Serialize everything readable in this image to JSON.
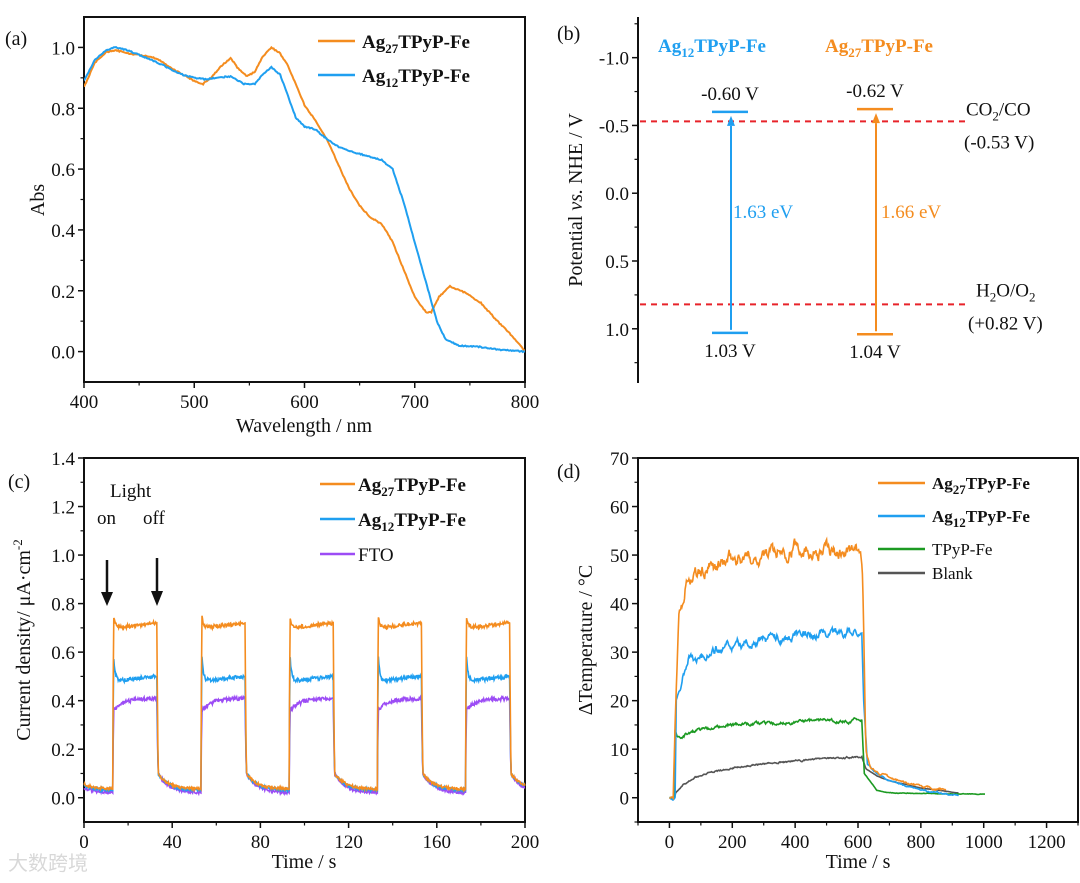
{
  "colors": {
    "orange": "#f48c1f",
    "blue": "#1f9ff0",
    "purple": "#9c4cf5",
    "green": "#1c9a22",
    "gray": "#555555",
    "red": "#e8232a",
    "axis": "#111111"
  },
  "watermark": "大数跨境",
  "chart_data": [
    {
      "panel": "(a)",
      "type": "line",
      "xlabel": "Wavelength / nm",
      "ylabel": "Abs",
      "xlim": [
        400,
        800
      ],
      "ylim": [
        -0.1,
        1.1
      ],
      "xticks": [
        400,
        500,
        600,
        700,
        800
      ],
      "yticks": [
        "0.0",
        "0.2",
        "0.4",
        "0.6",
        "0.8",
        "1.0"
      ],
      "legend_position": "top-right",
      "series": [
        {
          "name": {
            "base": "Ag",
            "sub": "27",
            "rest": "TPyP-Fe"
          },
          "color": "orange",
          "x": [
            400,
            410,
            420,
            430,
            440,
            450,
            460,
            470,
            480,
            490,
            500,
            508,
            515,
            525,
            533,
            540,
            548,
            555,
            562,
            570,
            578,
            585,
            592,
            600,
            610,
            620,
            630,
            640,
            650,
            660,
            670,
            680,
            690,
            700,
            710,
            715,
            722,
            732,
            745,
            760,
            775,
            790,
            800
          ],
          "y": [
            0.87,
            0.95,
            0.985,
            0.99,
            0.98,
            0.975,
            0.97,
            0.955,
            0.93,
            0.91,
            0.89,
            0.88,
            0.9,
            0.94,
            0.965,
            0.93,
            0.905,
            0.92,
            0.97,
            1.0,
            0.98,
            0.94,
            0.88,
            0.81,
            0.76,
            0.7,
            0.62,
            0.54,
            0.48,
            0.44,
            0.42,
            0.36,
            0.27,
            0.18,
            0.13,
            0.13,
            0.18,
            0.215,
            0.195,
            0.16,
            0.1,
            0.045,
            0.0
          ]
        },
        {
          "name": {
            "base": "Ag",
            "sub": "12",
            "rest": "TPyP-Fe"
          },
          "color": "blue",
          "x": [
            400,
            410,
            420,
            428,
            440,
            450,
            460,
            470,
            480,
            490,
            500,
            510,
            520,
            533,
            545,
            555,
            562,
            570,
            578,
            585,
            592,
            600,
            610,
            620,
            630,
            645,
            660,
            670,
            680,
            690,
            700,
            710,
            720,
            728,
            740,
            760,
            780,
            800
          ],
          "y": [
            0.89,
            0.96,
            0.99,
            1.0,
            0.99,
            0.975,
            0.96,
            0.945,
            0.925,
            0.91,
            0.9,
            0.895,
            0.9,
            0.905,
            0.88,
            0.88,
            0.91,
            0.935,
            0.91,
            0.84,
            0.77,
            0.74,
            0.73,
            0.7,
            0.675,
            0.655,
            0.64,
            0.63,
            0.6,
            0.49,
            0.36,
            0.23,
            0.1,
            0.04,
            0.02,
            0.015,
            0.005,
            0.0
          ]
        }
      ]
    },
    {
      "panel": "(b)",
      "type": "diagram",
      "ylabel_parts": {
        "a": "Potential ",
        "b": "vs.",
        "c": " NHE / V"
      },
      "ylim": [
        -1.3,
        1.4
      ],
      "yticks": [
        "-1.0",
        "-0.5",
        "0.0",
        "0.5",
        "1.0"
      ],
      "materials": [
        {
          "name": {
            "base": "Ag",
            "sub": "12",
            "rest": "TPyP-Fe"
          },
          "color": "blue",
          "cb": -0.6,
          "vb": 1.03,
          "cb_label": "-0.60 V",
          "vb_label": "1.03 V",
          "gap_label": "1.63 eV"
        },
        {
          "name": {
            "base": "Ag",
            "sub": "27",
            "rest": "TPyP-Fe"
          },
          "color": "orange",
          "cb": -0.62,
          "vb": 1.04,
          "cb_label": "-0.62 V",
          "vb_label": "1.04 V",
          "gap_label": "1.66 eV"
        }
      ],
      "reference_lines": [
        {
          "value": -0.53,
          "label": {
            "a": "CO",
            "sub": "2",
            "b": "/CO"
          },
          "value_label": "(-0.53 V)"
        },
        {
          "value": 0.82,
          "label": {
            "a": "H",
            "sub": "2",
            "b": "O/O",
            "sub2": "2"
          },
          "value_label": "(+0.82 V)"
        }
      ]
    },
    {
      "panel": "(c)",
      "type": "line",
      "xlabel": "Time / s",
      "ylabel_parts": {
        "a": "Current density/ μA·cm",
        "sup": "-2"
      },
      "xlim": [
        0,
        200
      ],
      "ylim": [
        -0.1,
        1.4
      ],
      "xticks": [
        0,
        40,
        80,
        120,
        160,
        200
      ],
      "yticks": [
        "0.0",
        "0.2",
        "0.4",
        "0.6",
        "0.8",
        "1.0",
        "1.2",
        "1.4"
      ],
      "annotations": {
        "light": "Light",
        "on": "on",
        "off": "off"
      },
      "light_on_times": [
        13,
        53,
        93,
        133,
        173
      ],
      "light_off_times": [
        33,
        73,
        113,
        153,
        193
      ],
      "legend_position": "top-right",
      "series": [
        {
          "name": {
            "base": "Ag",
            "sub": "27",
            "rest": "TPyP-Fe"
          },
          "color": "orange",
          "dark": 0.035,
          "spike": 0.75,
          "plateau_start": 0.7,
          "plateau_end": 0.72
        },
        {
          "name": {
            "base": "Ag",
            "sub": "12",
            "rest": "TPyP-Fe"
          },
          "color": "blue",
          "dark": 0.03,
          "spike": 0.59,
          "plateau_start": 0.48,
          "plateau_end": 0.5
        },
        {
          "name": {
            "base": "FTO"
          },
          "color": "purple",
          "dark": 0.02,
          "spike": 0.36,
          "plateau_start": 0.36,
          "plateau_end": 0.41
        }
      ]
    },
    {
      "panel": "(d)",
      "type": "line",
      "xlabel": "Time / s",
      "ylabel": "ΔTemperature / °C",
      "xlim": [
        -100,
        1300
      ],
      "ylim": [
        -5,
        70
      ],
      "xticks": [
        0,
        200,
        400,
        600,
        800,
        1000,
        1200
      ],
      "yticks": [
        0,
        10,
        20,
        30,
        40,
        50,
        60,
        70
      ],
      "legend_position": "top-right",
      "series": [
        {
          "name": {
            "base": "Ag",
            "sub": "27",
            "rest": "TPyP-Fe"
          },
          "bold": true,
          "color": "orange",
          "points": [
            [
              0,
              0
            ],
            [
              12,
              0
            ],
            [
              18,
              15
            ],
            [
              30,
              38
            ],
            [
              55,
              45
            ],
            [
              100,
              46
            ],
            [
              200,
              49
            ],
            [
              300,
              50
            ],
            [
              400,
              52
            ],
            [
              500,
              51
            ],
            [
              610,
              50
            ],
            [
              615,
              45
            ],
            [
              625,
              10
            ],
            [
              640,
              6
            ],
            [
              700,
              4
            ],
            [
              800,
              2.3
            ],
            [
              880,
              1.5
            ]
          ]
        },
        {
          "name": {
            "base": "Ag",
            "sub": "12",
            "rest": "TPyP-Fe"
          },
          "bold": true,
          "color": "blue",
          "points": [
            [
              0,
              0
            ],
            [
              12,
              -0.5
            ],
            [
              18,
              0
            ],
            [
              22,
              20
            ],
            [
              40,
              24
            ],
            [
              60,
              28
            ],
            [
              100,
              29.5
            ],
            [
              200,
              31.5
            ],
            [
              300,
              32.5
            ],
            [
              400,
              33.5
            ],
            [
              500,
              34
            ],
            [
              612,
              34
            ],
            [
              618,
              20
            ],
            [
              630,
              7
            ],
            [
              660,
              5
            ],
            [
              700,
              3.5
            ],
            [
              800,
              1.5
            ],
            [
              920,
              0.5
            ]
          ]
        },
        {
          "name": {
            "base": "TPyP-Fe"
          },
          "bold": false,
          "color": "green",
          "points": [
            [
              0,
              0
            ],
            [
              14,
              0
            ],
            [
              18,
              14
            ],
            [
              25,
              12.5
            ],
            [
              100,
              14
            ],
            [
              200,
              15
            ],
            [
              300,
              15.2
            ],
            [
              400,
              15.5
            ],
            [
              500,
              15.8
            ],
            [
              612,
              16
            ],
            [
              620,
              5
            ],
            [
              660,
              1.5
            ],
            [
              700,
              1
            ],
            [
              1005,
              0.7
            ]
          ]
        },
        {
          "name": {
            "base": "Blank"
          },
          "bold": false,
          "color": "gray",
          "points": [
            [
              0,
              0
            ],
            [
              16,
              0
            ],
            [
              20,
              1
            ],
            [
              50,
              3
            ],
            [
              100,
              4.8
            ],
            [
              200,
              6.2
            ],
            [
              300,
              7
            ],
            [
              400,
              7.6
            ],
            [
              500,
              8
            ],
            [
              612,
              8.5
            ],
            [
              625,
              6
            ],
            [
              660,
              4.5
            ],
            [
              700,
              3.5
            ],
            [
              800,
              2
            ],
            [
              920,
              1
            ]
          ]
        }
      ]
    }
  ]
}
